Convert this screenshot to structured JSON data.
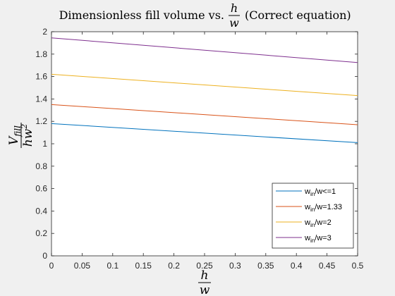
{
  "chart_data": {
    "type": "line",
    "title": {
      "prefix": "Dimensionless fill volume vs.",
      "frac_num": "h",
      "frac_den": "w",
      "suffix": "(Correct equation)"
    },
    "xlabel": {
      "num": "h",
      "den": "w"
    },
    "ylabel": {
      "main": "V",
      "sub": "fill",
      "den_base": "hw",
      "den_exp": "2"
    },
    "xlim": [
      0,
      0.5
    ],
    "ylim": [
      0,
      2
    ],
    "xticks": [
      "0",
      "0.05",
      "0.1",
      "0.15",
      "0.2",
      "0.25",
      "0.3",
      "0.35",
      "0.4",
      "0.45",
      "0.5"
    ],
    "yticks": [
      "0",
      "0.2",
      "0.4",
      "0.6",
      "0.8",
      "1",
      "1.2",
      "1.4",
      "1.6",
      "1.8",
      "2"
    ],
    "grid": false,
    "legend_position": "bottom-right",
    "series": [
      {
        "name": "w",
        "name_sub": "in",
        "name_rest": "/w<=1",
        "color": "#0072bd",
        "x": [
          0,
          0.5
        ],
        "y": [
          1.18,
          1.01
        ]
      },
      {
        "name": "w",
        "name_sub": "in",
        "name_rest": "/w=1.33",
        "color": "#d95319",
        "x": [
          0,
          0.5
        ],
        "y": [
          1.35,
          1.17
        ]
      },
      {
        "name": "w",
        "name_sub": "in",
        "name_rest": "/w=2",
        "color": "#edb120",
        "x": [
          0,
          0.5
        ],
        "y": [
          1.62,
          1.43
        ]
      },
      {
        "name": "w",
        "name_sub": "in",
        "name_rest": "/w=3",
        "color": "#7e2f8e",
        "x": [
          0,
          0.5
        ],
        "y": [
          1.945,
          1.725
        ]
      }
    ]
  }
}
